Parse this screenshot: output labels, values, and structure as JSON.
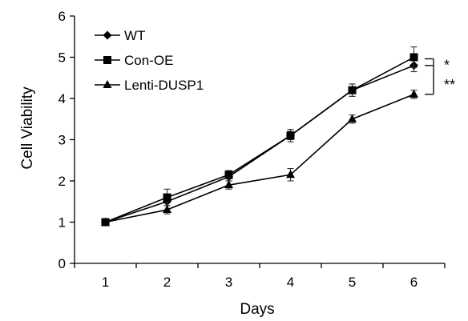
{
  "chart_data": {
    "type": "line",
    "xlabel": "Days",
    "ylabel": "Cell Viability",
    "x": [
      1,
      2,
      3,
      4,
      5,
      6
    ],
    "xlim": [
      0.5,
      6.5
    ],
    "ylim": [
      0,
      6
    ],
    "x_ticks": [
      "1",
      "2",
      "3",
      "4",
      "5",
      "6"
    ],
    "y_ticks": [
      "0",
      "1",
      "2",
      "3",
      "4",
      "5",
      "6"
    ],
    "grid": false,
    "legend_position": "top-left",
    "series": [
      {
        "name": "WT",
        "marker": "diamond",
        "color": "#000000",
        "values": [
          1.0,
          1.5,
          2.1,
          3.1,
          4.2,
          4.8
        ],
        "errors": [
          0.0,
          0.1,
          0.1,
          0.1,
          0.15,
          0.15
        ]
      },
      {
        "name": "Con-OE",
        "marker": "square",
        "color": "#000000",
        "values": [
          1.0,
          1.6,
          2.15,
          3.1,
          4.2,
          5.0
        ],
        "errors": [
          0.0,
          0.2,
          0.1,
          0.15,
          0.15,
          0.25
        ]
      },
      {
        "name": "Lenti-DUSP1",
        "marker": "triangle",
        "color": "#000000",
        "values": [
          1.0,
          1.3,
          1.9,
          2.15,
          3.5,
          4.1
        ],
        "errors": [
          0.0,
          0.1,
          0.1,
          0.15,
          0.1,
          0.1
        ]
      }
    ],
    "annotations": [
      {
        "text": "*",
        "between": [
          "Con-OE",
          "WT"
        ]
      },
      {
        "text": "**",
        "between": [
          "WT",
          "Lenti-DUSP1"
        ]
      }
    ]
  }
}
